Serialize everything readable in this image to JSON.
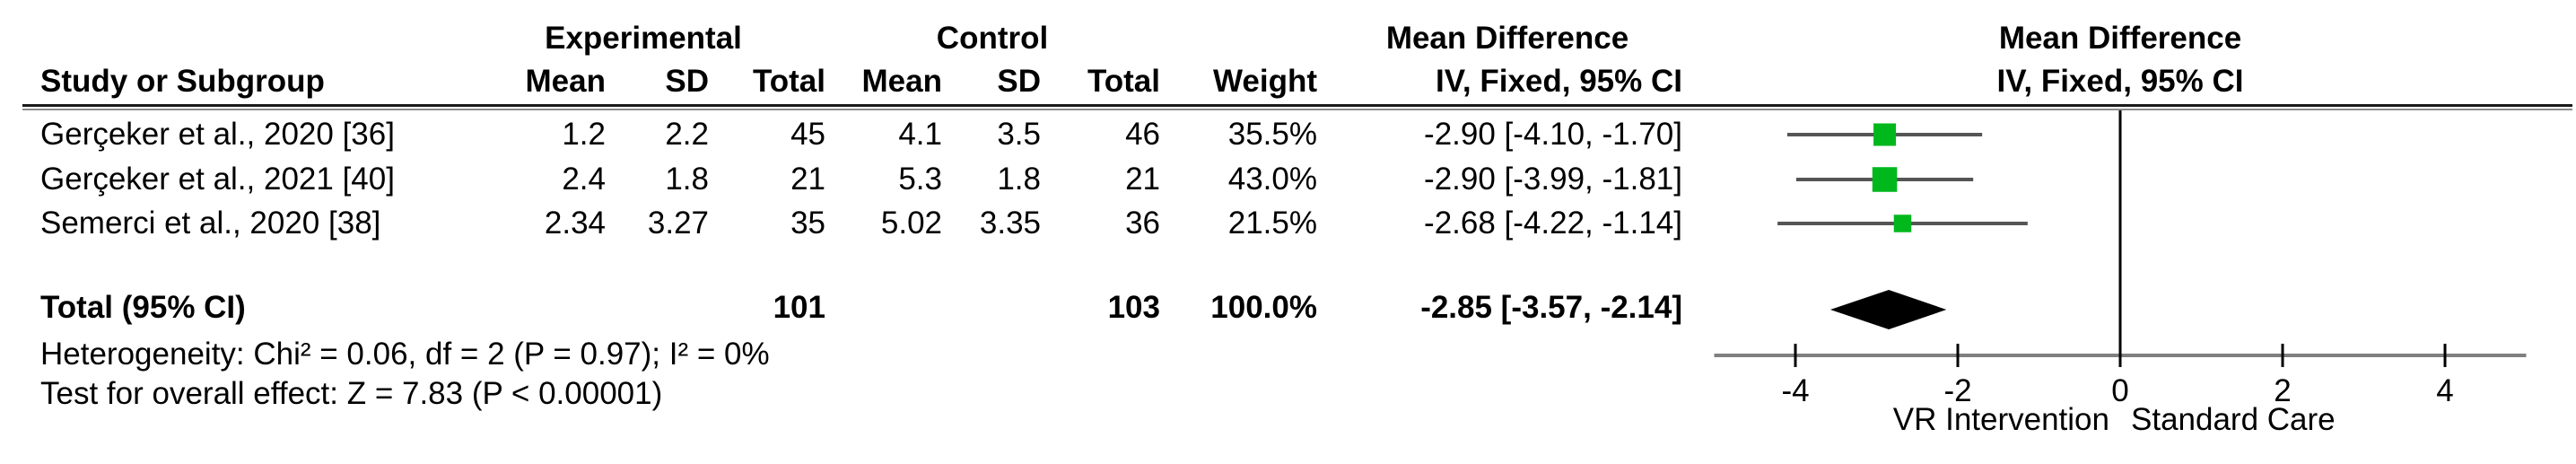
{
  "table": {
    "headers": {
      "group_experimental": "Experimental",
      "group_control": "Control",
      "mean_difference": "Mean Difference",
      "study": "Study or Subgroup",
      "mean": "Mean",
      "sd": "SD",
      "total": "Total",
      "weight": "Weight",
      "iv_fixed": "IV, Fixed, 95% CI"
    },
    "rows": [
      {
        "study": "Gerçeker et al., 2020 [36]",
        "exp_mean": "1.2",
        "exp_sd": "2.2",
        "exp_total": "45",
        "ctl_mean": "4.1",
        "ctl_sd": "3.5",
        "ctl_total": "46",
        "weight": "35.5%",
        "ci": "-2.90 [-4.10, -1.70]"
      },
      {
        "study": "Gerçeker et al., 2021 [40]",
        "exp_mean": "2.4",
        "exp_sd": "1.8",
        "exp_total": "21",
        "ctl_mean": "5.3",
        "ctl_sd": "1.8",
        "ctl_total": "21",
        "weight": "43.0%",
        "ci": "-2.90 [-3.99, -1.81]"
      },
      {
        "study": "Semerci et al., 2020 [38]",
        "exp_mean": "2.34",
        "exp_sd": "3.27",
        "exp_total": "35",
        "ctl_mean": "5.02",
        "ctl_sd": "3.35",
        "ctl_total": "36",
        "weight": "21.5%",
        "ci": "-2.68 [-4.22, -1.14]"
      }
    ],
    "total_row": {
      "label": "Total (95% CI)",
      "exp_total": "101",
      "ctl_total": "103",
      "weight": "100.0%",
      "ci": "-2.85 [-3.57, -2.14]"
    },
    "footnotes": {
      "heterogeneity": "Heterogeneity: Chi² = 0.06, df = 2 (P = 0.97); I² = 0%",
      "overall_effect": "Test for overall effect: Z = 7.83 (P < 0.00001)"
    }
  },
  "chart_data": {
    "type": "forest",
    "title": "Mean Difference",
    "subtitle": "IV, Fixed, 95% CI",
    "effect_measure": "Mean Difference, IV, Fixed, 95% CI",
    "xlim": [
      -5,
      5
    ],
    "x_ticks": [
      -4,
      -2,
      0,
      2,
      4
    ],
    "axis_label_left": "VR Intervention",
    "axis_label_right": "Standard Care",
    "studies": [
      {
        "name": "Gerçeker et al., 2020 [36]",
        "md": -2.9,
        "ci_low": -4.1,
        "ci_high": -1.7,
        "weight": 35.5
      },
      {
        "name": "Gerçeker et al., 2021 [40]",
        "md": -2.9,
        "ci_low": -3.99,
        "ci_high": -1.81,
        "weight": 43.0
      },
      {
        "name": "Semerci et al., 2020 [38]",
        "md": -2.68,
        "ci_low": -4.22,
        "ci_high": -1.14,
        "weight": 21.5
      }
    ],
    "total": {
      "md": -2.85,
      "ci_low": -3.57,
      "ci_high": -2.14
    },
    "marker_color": "#00b71c",
    "diamond_color": "#000000",
    "line_color": "#555555",
    "axis_color": "#7f7f7f",
    "grid": false,
    "legend": false
  }
}
